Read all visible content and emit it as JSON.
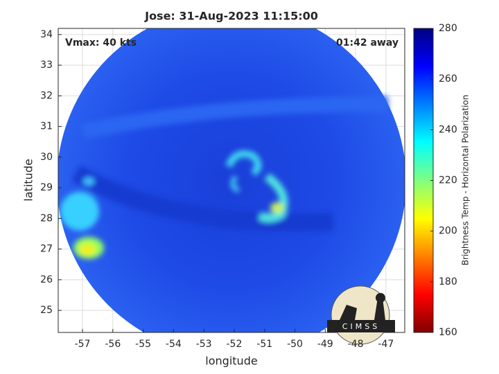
{
  "chart_data": {
    "type": "swath-image",
    "title": "Jose: 31-Aug-2023 11:15:00",
    "xlabel": "longitude",
    "ylabel": "latitude",
    "annotations": [
      "Vmax: 40 kts",
      "01:42 away"
    ],
    "xlim": [
      -57.8,
      -46.38
    ],
    "ylim": [
      24.28,
      34.2
    ],
    "xticks": [
      -57,
      -56,
      -55,
      -54,
      -53,
      -52,
      -51,
      -50,
      -49,
      -48,
      -47
    ],
    "yticks": [
      25,
      26,
      27,
      28,
      29,
      30,
      31,
      32,
      33,
      34
    ],
    "grid": true,
    "colorbar": {
      "label": "Brightness Temp - Horizontal Polarization",
      "lim": [
        160,
        280
      ],
      "ticks": [
        160,
        180,
        200,
        220,
        240,
        260,
        280
      ]
    },
    "logo": "CIMSS"
  }
}
